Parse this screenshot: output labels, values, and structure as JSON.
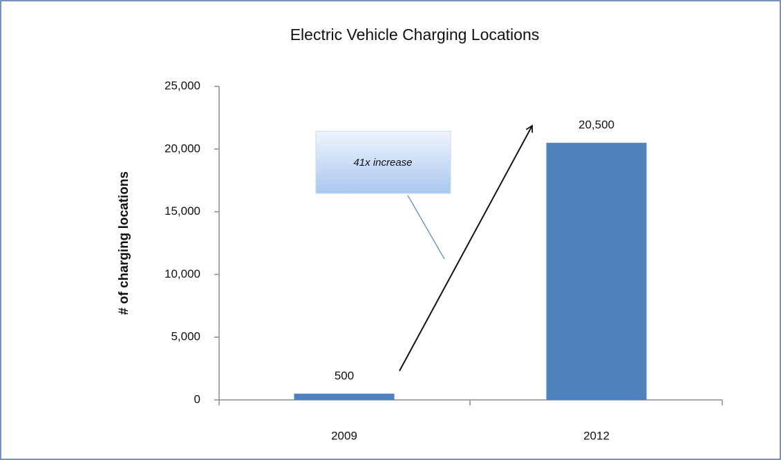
{
  "chart_data": {
    "type": "bar",
    "title": "Electric Vehicle Charging Locations",
    "y_label": "# of charging locations",
    "categories": [
      "2009",
      "2012"
    ],
    "values": [
      500,
      20500
    ],
    "value_labels": [
      "500",
      "20,500"
    ],
    "color": "#4f81bd",
    "ylim": [
      0,
      25000
    ],
    "yticks": [
      0,
      {
        "value": 5000,
        "label": "5,000"
      },
      {
        "value": 10000,
        "label": "10,000"
      },
      {
        "value": 15000,
        "label": "15,000"
      },
      {
        "value": 20000,
        "label": "20,000"
      },
      {
        "value": 25000,
        "label": "25,000"
      }
    ],
    "annotation": "41x increase",
    "grid": false
  }
}
